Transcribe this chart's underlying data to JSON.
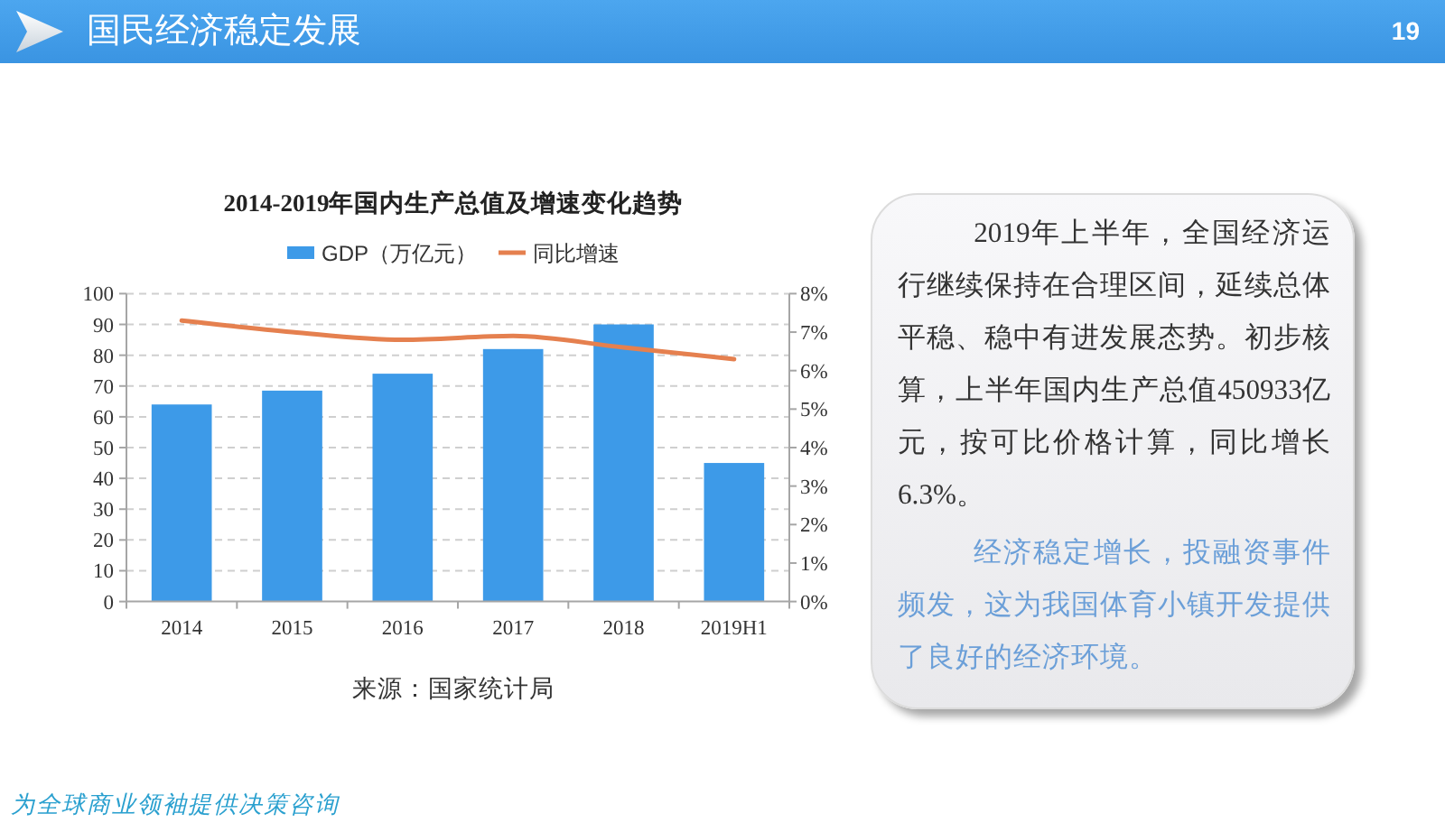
{
  "chart_data": [
    {
      "type": "other",
      "title": "国民经济稳定发展",
      "annotations": [
        "19"
      ]
    },
    {
      "type": "bar",
      "title": "2014-2019年国内生产总值及增速变化趋势",
      "categories": [
        "2014",
        "2015",
        "2016",
        "2017",
        "2018",
        "2019H1"
      ],
      "series": [
        {
          "name": "GDP（万亿元）",
          "type": "bar",
          "color": "#3d9ae8",
          "values": [
            64.0,
            68.5,
            74.0,
            82.0,
            90.0,
            45.0
          ]
        },
        {
          "name": "同比增速",
          "type": "line",
          "axis": "y2",
          "color": "#e5804f",
          "values": [
            7.3,
            7.0,
            6.8,
            6.9,
            6.6,
            6.3
          ]
        }
      ],
      "ylim": [
        0,
        100
      ],
      "yticks": [
        0,
        10,
        20,
        30,
        40,
        50,
        60,
        70,
        80,
        90,
        100
      ],
      "y2lim": [
        0,
        8
      ],
      "y2ticks": [
        {
          "value": 0,
          "label": "0%"
        },
        {
          "value": 1,
          "label": "1%"
        },
        {
          "value": 2,
          "label": "2%"
        },
        {
          "value": 3,
          "label": "3%"
        },
        {
          "value": 4,
          "label": "4%"
        },
        {
          "value": 5,
          "label": "5%"
        },
        {
          "value": 6,
          "label": "6%"
        },
        {
          "value": 7,
          "label": "7%"
        },
        {
          "value": 8,
          "label": "8%"
        }
      ],
      "grid": "y",
      "legend": "top",
      "annotations": [
        "来源：国家统计局"
      ]
    },
    {
      "type": "other",
      "annotations": [
        "2019年上半年，全国经济运行继续保持在合理区间，延续总体平稳、稳中有进发展态势。初步核算，上半年国内生产总值450933亿元，按可比价格计算，同比增长6.3%。",
        "经济稳定增长，投融资事件频发，这为我国体育小镇开发提供了良好的经济环境。"
      ]
    },
    {
      "type": "other",
      "annotations": [
        "为全球商业领袖提供决策咨询"
      ]
    }
  ]
}
